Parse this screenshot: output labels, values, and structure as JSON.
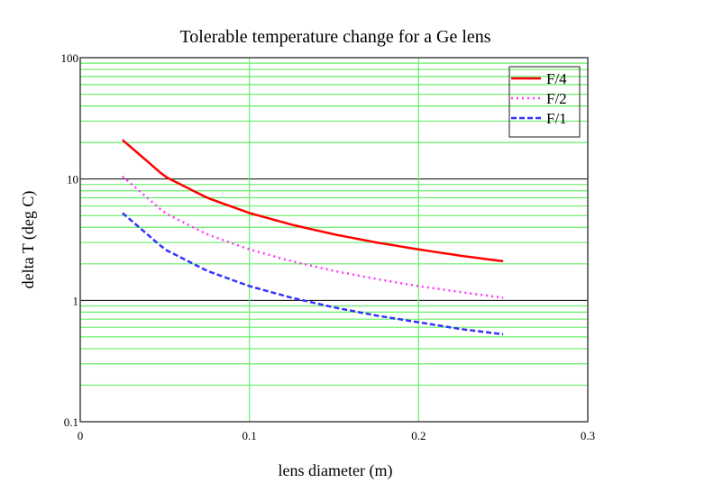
{
  "chart_data": {
    "type": "line",
    "title": "Tolerable temperature change for a Ge lens",
    "xlabel": "lens diameter (m)",
    "ylabel": "delta T (deg C)",
    "xlim": [
      0,
      0.3
    ],
    "ylim": [
      0.1,
      100
    ],
    "yscale": "log",
    "grid": true,
    "x_ticks": [
      "0",
      "0.1",
      "0.2",
      "0.3"
    ],
    "y_ticks": [
      "0.1",
      "1",
      "10",
      "100"
    ],
    "legend_position": "top-right",
    "x": [
      0.025,
      0.05,
      0.075,
      0.1,
      0.125,
      0.15,
      0.175,
      0.2,
      0.225,
      0.25
    ],
    "series": [
      {
        "name": "F/4",
        "color": "#ff0000",
        "style": "solid",
        "values": [
          21,
          10.5,
          7.0,
          5.25,
          4.2,
          3.5,
          3.0,
          2.63,
          2.33,
          2.1
        ]
      },
      {
        "name": "F/2",
        "color": "#ff33ff",
        "style": "dotted",
        "values": [
          10.5,
          5.25,
          3.5,
          2.63,
          2.1,
          1.75,
          1.5,
          1.31,
          1.17,
          1.05
        ]
      },
      {
        "name": "F/1",
        "color": "#3333ff",
        "style": "dashed",
        "values": [
          5.25,
          2.63,
          1.75,
          1.31,
          1.05,
          0.875,
          0.75,
          0.66,
          0.58,
          0.525
        ]
      }
    ]
  }
}
